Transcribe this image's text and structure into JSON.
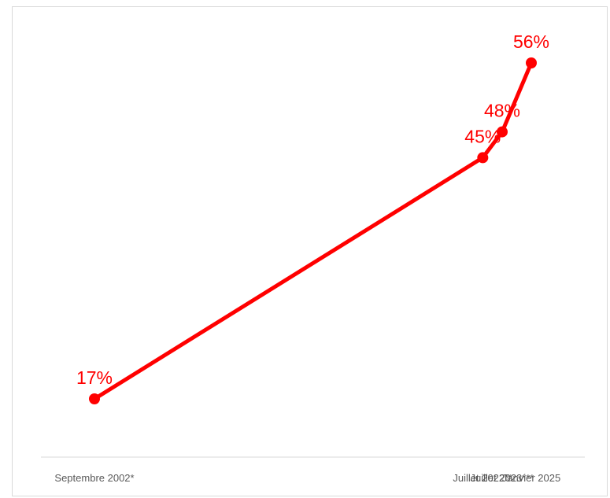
{
  "chart_data": {
    "type": "line",
    "categories": [
      "Septembre 2002*",
      "Juillet 2022**",
      "Juillet 2023***",
      "Janvier 2025"
    ],
    "x_positions": [
      0,
      20,
      21,
      22.5
    ],
    "values": [
      17,
      45,
      48,
      56
    ],
    "data_labels": [
      "17%",
      "45%",
      "48%",
      "56%"
    ],
    "title": "",
    "xlabel": "",
    "ylabel": "",
    "ylim": [
      0,
      60
    ],
    "grid": false,
    "legend": "none",
    "line_color": "#ff0000"
  }
}
